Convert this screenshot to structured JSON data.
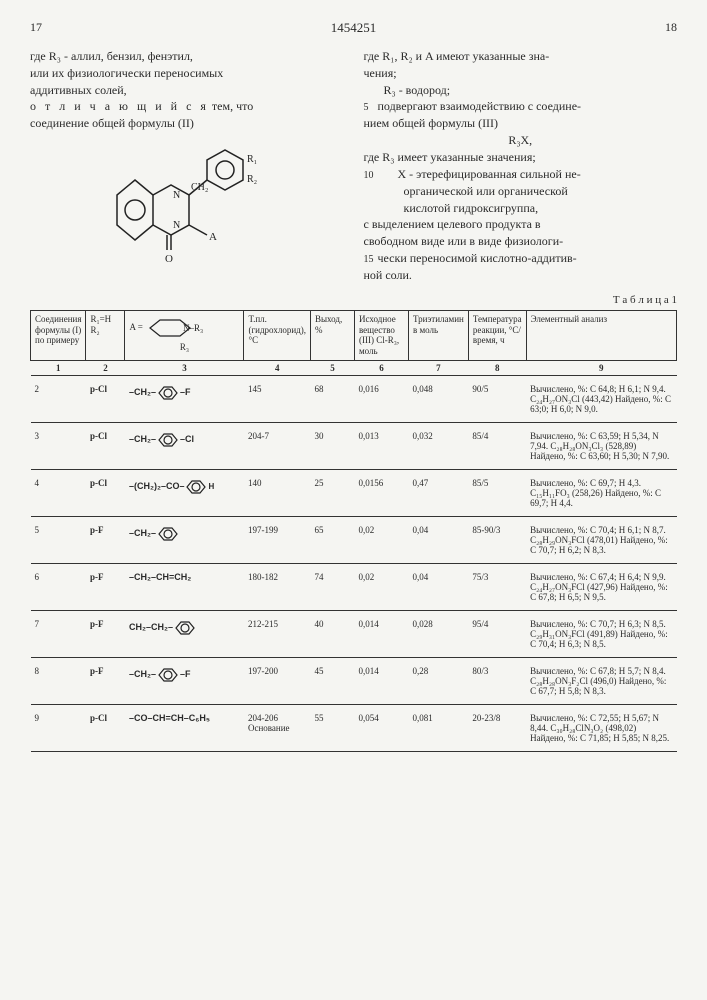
{
  "patent_number": "1454251",
  "page_left": "17",
  "page_right": "18",
  "left_col": {
    "line1": "где R₃ - аллил, бензил, фенэтил,",
    "line2": "или их физиологически переносимых",
    "line3": "аддитивных солей,",
    "line4_a": "о т л и ч а ю щ и й с я",
    "line4_b": " тем, что",
    "line5": "соединение общей формулы (II)"
  },
  "right_col": {
    "l1": "где R₁, R₂ и A имеют указанные зна-",
    "l2": "чения;",
    "l3": "R₃ - водород;",
    "l4": "подвергают взаимодействию с соедине-",
    "l5": "нием общей формулы (III)",
    "l6": "R₃X,",
    "l7": "где R₃ имеет указанные значения;",
    "l8": "X - этерефицированная сильной не-",
    "l9": "органической или органической",
    "l10": "кислотой гидроксигруппа,",
    "l11": "с выделением целевого продукта в",
    "l12": "свободном виде или в виде физиологи-",
    "l13": "чески переносимой кислотно-аддитив-",
    "l14": "ной соли.",
    "ln5": "5",
    "ln10": "10",
    "ln15": "15"
  },
  "table_label": "Т а б л и ц а  1",
  "headers": {
    "c1": "Соединения формулы (I) по примеру",
    "c2": "R₁=H R₂",
    "c3_prefix": "A =",
    "c3_sub": "R₃",
    "c4": "Т.пл. (гидрохлорид), °C",
    "c5": "Выход, %",
    "c6": "Исходное вещество (III) Cl-R₃, моль",
    "c7": "Триэтиламин в моль",
    "c8": "Температура реакции, °C/время, ч",
    "c9": "Элементный анализ"
  },
  "colnums": [
    "1",
    "2",
    "3",
    "4",
    "5",
    "6",
    "7",
    "8",
    "9"
  ],
  "rows": [
    {
      "n": "2",
      "r2": "p-Cl",
      "r3": "–CH₂–⬡–F",
      "tpl": "145",
      "vy": "68",
      "isv": "0,016",
      "tea": "0,048",
      "temp": "90/5",
      "anal": "Вычислено, %: C 64,8; H 6,1; N 9,4. C₂₄H₂₇ON₃Cl (443,42) Найдено, %: C 63;0; H 6,0; N 9,0."
    },
    {
      "n": "3",
      "r2": "p-Cl",
      "r3": "–CH₂–⬡–Cl",
      "tpl": "204-7",
      "vy": "30",
      "isv": "0,013",
      "tea": "0,032",
      "temp": "85/4",
      "anal": "Вычислено, %: C 63,59; H 5,34, N 7,94. C₂₈H₂₈ON₃Cl₃ (528,89) Найдено, %: C 63,60; H 5,30; N 7,90."
    },
    {
      "n": "4",
      "r2": "p-Cl",
      "r3": "–(CH₂)₂–CO–⬡H",
      "tpl": "140",
      "vy": "25",
      "isv": "0,0156",
      "tea": "0,47",
      "temp": "85/5",
      "anal": "Вычислено, %: C 69,7; H 4,3. C₁₅H₁₁FO₃ (258,26) Найдено, %: C 69,7; H 4,4."
    },
    {
      "n": "5",
      "r2": "p-F",
      "r3": "–CH₂–⬡",
      "tpl": "197-199",
      "vy": "65",
      "isv": "0,02",
      "tea": "0,04",
      "temp": "85-90/3",
      "anal": "Вычислено, %: C 70,4; H 6,1; N 8,7. C₂₈H₂₉ON₃FCl (478,01) Найдено, %: C 70,7; H 6,2; N 8,3."
    },
    {
      "n": "6",
      "r2": "p-F",
      "r3": "–CH₂–CH=CH₂",
      "tpl": "180-182",
      "vy": "74",
      "isv": "0,02",
      "tea": "0,04",
      "temp": "75/3",
      "anal": "Вычислено, %: C 67,4; H 6,4; N 9,9. C₂₄H₂₇ON₃FCl (427,96) Найдено, %: C 67,8; H 6,5; N 9,5."
    },
    {
      "n": "7",
      "r2": "p-F",
      "r3": "CH₂–CH₂–⬡",
      "tpl": "212-215",
      "vy": "40",
      "isv": "0,014",
      "tea": "0,028",
      "temp": "95/4",
      "anal": "Вычислено, %: C 70,7; H 6,3; N 8,5. C₂₉H₃₁ON₃FCl (491,89) Найдено, %: C 70,4; H 6,3; N 8,5."
    },
    {
      "n": "8",
      "r2": "p-F",
      "r3": "–CH₂–⬡–F",
      "tpl": "197-200",
      "vy": "45",
      "isv": "0,014",
      "tea": "0,28",
      "temp": "80/3",
      "anal": "Вычислено, %: C 67,8; H 5,7; N 8,4. C₂₈H₂₈ON₃F₂Cl (496,0) Найдено, %: C 67,7; H 5,8; N 8,3."
    },
    {
      "n": "9",
      "r2": "p-Cl",
      "r3": "–CO–CH=CH–C₆H₅",
      "tpl": "204-206 Основание",
      "vy": "55",
      "isv": "0,054",
      "tea": "0,081",
      "temp": "20-23/8",
      "anal": "Вычислено, %: C 72,55; H 5,67; N 8,44. C₃₀H₂₈ClN₃O₂ (498,02) Найдено, %: C 71,85; H 5,85; N 8,25."
    }
  ]
}
